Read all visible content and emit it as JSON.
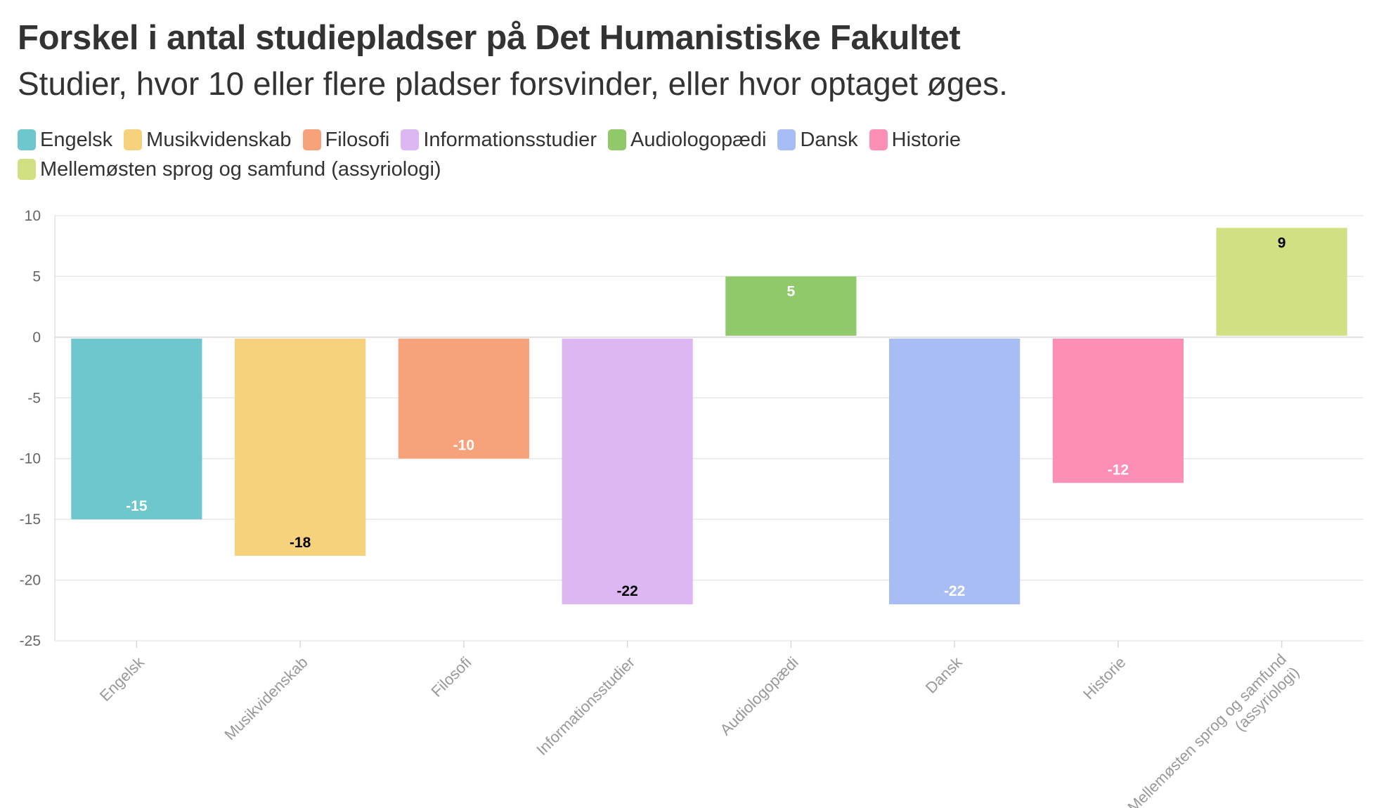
{
  "title": "Forskel i antal studiepladser på Det Humanistiske Fakultet",
  "subtitle": "Studier, hvor 10 eller flere pladser forsvinder, eller hvor optaget øges.",
  "legend": [
    {
      "label": "Engelsk",
      "color": "#6ec7cc"
    },
    {
      "label": "Musikvidenskab",
      "color": "#f6d27c"
    },
    {
      "label": "Filosofi",
      "color": "#f7a27a"
    },
    {
      "label": "Informationsstudier",
      "color": "#dcb7f3"
    },
    {
      "label": "Audiologopædi",
      "color": "#8fc96a"
    },
    {
      "label": "Dansk",
      "color": "#a7bdf3"
    },
    {
      "label": "Historie",
      "color": "#fd8fb4"
    },
    {
      "label": "Mellemøsten sprog og samfund (assyriologi)",
      "color": "#d1e082"
    }
  ],
  "chart_data": {
    "type": "bar",
    "title": "Forskel i antal studiepladser på Det Humanistiske Fakultet",
    "subtitle": "Studier, hvor 10 eller flere pladser forsvinder, eller hvor optaget øges.",
    "categories": [
      "Engelsk",
      "Musikvidenskab",
      "Filosofi",
      "Informationsstudier",
      "Audiologopædi",
      "Dansk",
      "Historie",
      "Mellemøsten sprog og samfund (assyriologi)"
    ],
    "category_tick_lines": [
      [
        "Engelsk"
      ],
      [
        "Musikvidenskab"
      ],
      [
        "Filosofi"
      ],
      [
        "Informationsstudier"
      ],
      [
        "Audiologopædi"
      ],
      [
        "Dansk"
      ],
      [
        "Historie"
      ],
      [
        "Mellemøsten sprog og samfund",
        "(assyriologi)"
      ]
    ],
    "values": [
      -15,
      -18,
      -10,
      -22,
      5,
      -22,
      -12,
      9
    ],
    "data_labels": [
      "-15",
      "-18",
      "-10",
      "-22",
      "5",
      "-22",
      "-12",
      "9"
    ],
    "label_colors": [
      "#ffffff",
      "#000000",
      "#ffffff",
      "#000000",
      "#ffffff",
      "#ffffff",
      "#ffffff",
      "#000000"
    ],
    "colors": [
      "#6ec7cc",
      "#f6d27c",
      "#f7a27a",
      "#dcb7f3",
      "#8fc96a",
      "#a7bdf3",
      "#fd8fb4",
      "#d1e082"
    ],
    "y_ticks": [
      10,
      5,
      0,
      -5,
      -10,
      -15,
      -20,
      -25
    ],
    "ylim": [
      -25,
      10
    ],
    "grid": true,
    "legend_position": "top-left",
    "xlabel": "",
    "ylabel": ""
  }
}
